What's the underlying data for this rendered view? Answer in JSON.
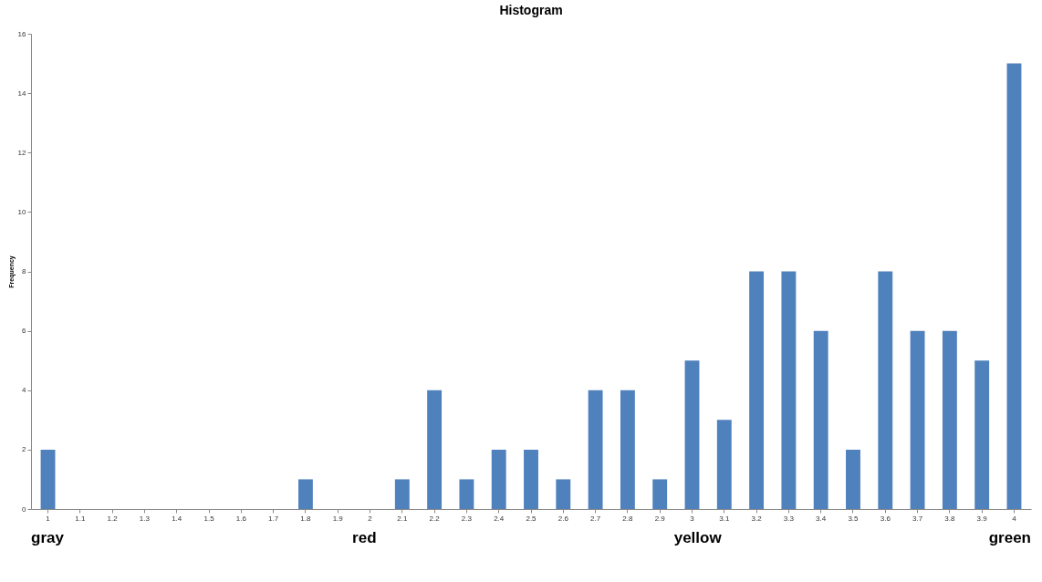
{
  "chart_data": {
    "type": "bar",
    "title": "Histogram",
    "ylabel": "Frequency",
    "categories": [
      "1",
      "1.1",
      "1.2",
      "1.3",
      "1.4",
      "1.5",
      "1.6",
      "1.7",
      "1.8",
      "1.9",
      "2",
      "2.1",
      "2.2",
      "2.3",
      "2.4",
      "2.5",
      "2.6",
      "2.7",
      "2.8",
      "2.9",
      "3",
      "3.1",
      "3.2",
      "3.3",
      "3.4",
      "3.5",
      "3.6",
      "3.7",
      "3.8",
      "3.9",
      "4"
    ],
    "values": [
      2,
      0,
      0,
      0,
      0,
      0,
      0,
      0,
      1,
      0,
      0,
      1,
      4,
      1,
      2,
      2,
      1,
      4,
      4,
      1,
      5,
      3,
      8,
      8,
      6,
      2,
      8,
      6,
      6,
      5,
      15
    ],
    "color": "#4f81bd",
    "ylim": [
      0,
      16
    ],
    "yticks": [
      0,
      2,
      4,
      6,
      8,
      10,
      12,
      14,
      16
    ],
    "grid": false,
    "annotations": [
      "gray",
      "red",
      "yellow",
      "green"
    ]
  }
}
